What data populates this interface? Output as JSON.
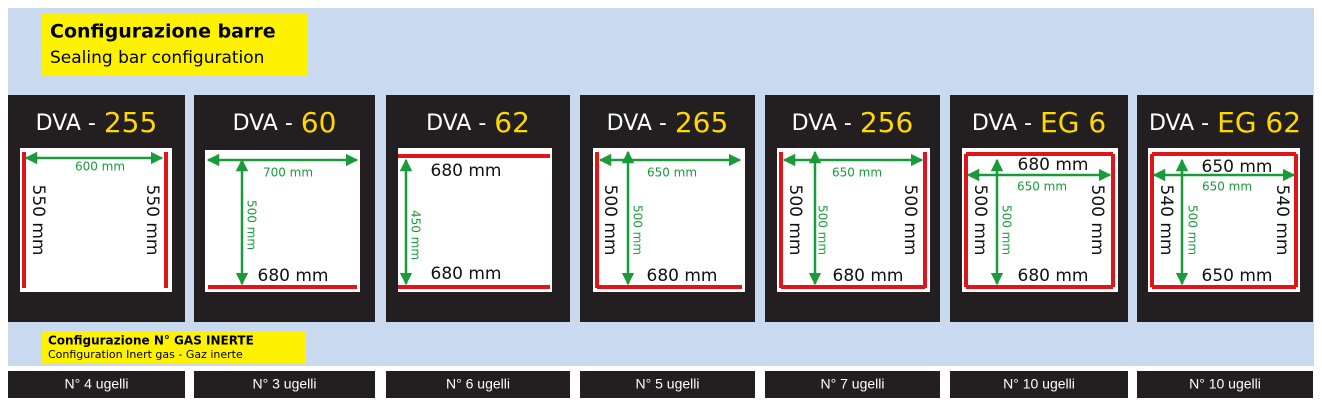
{
  "header": {
    "title": "Configurazione barre",
    "subtitle": "Sealing bar configuration"
  },
  "gas": {
    "title": "Configurazione N° GAS INERTE",
    "subtitle": "Configuration Inert gas - Gaz inerte"
  },
  "panels": [
    {
      "prefix": "DVA -",
      "model": "255",
      "labels": [
        "600 mm",
        "550 mm",
        "550 mm"
      ],
      "nozzles": "N° 4 ugelli"
    },
    {
      "prefix": "DVA -",
      "model": "60",
      "labels": [
        "700 mm",
        "500 mm",
        "680 mm"
      ],
      "nozzles": "N° 3 ugelli"
    },
    {
      "prefix": "DVA -",
      "model": "62",
      "labels": [
        "680 mm",
        "450 mm",
        "680 mm"
      ],
      "nozzles": "N° 6 ugelli"
    },
    {
      "prefix": "DVA -",
      "model": "265",
      "labels": [
        "650 mm",
        "500 mm",
        "500 mm",
        "680 mm"
      ],
      "nozzles": "N° 5 ugelli"
    },
    {
      "prefix": "DVA -",
      "model": "256",
      "labels": [
        "650 mm",
        "500 mm",
        "500 mm",
        "500 mm",
        "680 mm"
      ],
      "nozzles": "N° 7 ugelli"
    },
    {
      "prefix": "DVA -",
      "model": "EG 6",
      "labels": [
        "680 mm",
        "650 mm",
        "500 mm",
        "500 mm",
        "500 mm",
        "680 mm"
      ],
      "nozzles": "N° 10 ugelli"
    },
    {
      "prefix": "DVA -",
      "model": "EG 62",
      "labels": [
        "650 mm",
        "650 mm",
        "540 mm",
        "500 mm",
        "540 mm",
        "650 mm"
      ],
      "nozzles": "N° 10 ugelli"
    }
  ]
}
